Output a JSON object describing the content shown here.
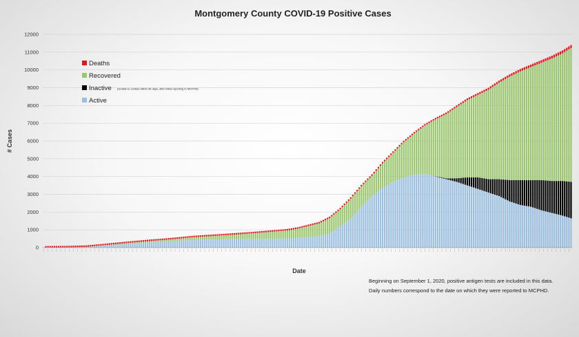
{
  "chart_data": {
    "type": "bar",
    "stacked": true,
    "title": "Montgomery County COVID-19 Positive Cases",
    "xlabel": "Date",
    "ylabel": "# Cases",
    "ylim": [
      0,
      12000
    ],
    "yticks": [
      0,
      1000,
      2000,
      3000,
      4000,
      5000,
      6000,
      7000,
      8000,
      9000,
      10000,
      11000,
      12000
    ],
    "ytick_labels": [
      "0",
      "1000",
      "2000",
      "3000",
      "4000",
      "5000",
      "6000",
      "7000",
      "8000",
      "9000",
      "10000",
      "11000",
      "12000"
    ],
    "grid": true,
    "legend_position": "top-left",
    "bar_count": 250,
    "anchors": {
      "total": [
        [
          0,
          0
        ],
        [
          10,
          10
        ],
        [
          20,
          40
        ],
        [
          30,
          150
        ],
        [
          40,
          270
        ],
        [
          50,
          380
        ],
        [
          60,
          480
        ],
        [
          70,
          600
        ],
        [
          80,
          680
        ],
        [
          90,
          760
        ],
        [
          100,
          850
        ],
        [
          110,
          950
        ],
        [
          115,
          1000
        ],
        [
          120,
          1100
        ],
        [
          130,
          1400
        ],
        [
          135,
          1700
        ],
        [
          140,
          2200
        ],
        [
          145,
          2800
        ],
        [
          150,
          3500
        ],
        [
          155,
          4100
        ],
        [
          160,
          4800
        ],
        [
          165,
          5400
        ],
        [
          170,
          6000
        ],
        [
          175,
          6500
        ],
        [
          180,
          6950
        ],
        [
          185,
          7300
        ],
        [
          190,
          7600
        ],
        [
          195,
          8000
        ],
        [
          200,
          8400
        ],
        [
          205,
          8700
        ],
        [
          210,
          9000
        ],
        [
          215,
          9400
        ],
        [
          220,
          9750
        ],
        [
          225,
          10050
        ],
        [
          230,
          10300
        ],
        [
          235,
          10550
        ],
        [
          240,
          10800
        ],
        [
          245,
          11100
        ],
        [
          249,
          11400
        ]
      ],
      "deaths": [
        [
          0,
          0
        ],
        [
          30,
          2
        ],
        [
          60,
          20
        ],
        [
          100,
          35
        ],
        [
          130,
          40
        ],
        [
          160,
          60
        ],
        [
          190,
          90
        ],
        [
          220,
          130
        ],
        [
          249,
          170
        ]
      ],
      "active": [
        [
          0,
          0
        ],
        [
          10,
          10
        ],
        [
          20,
          35
        ],
        [
          30,
          130
        ],
        [
          40,
          210
        ],
        [
          50,
          290
        ],
        [
          60,
          360
        ],
        [
          70,
          420
        ],
        [
          80,
          460
        ],
        [
          90,
          480
        ],
        [
          100,
          490
        ],
        [
          110,
          500
        ],
        [
          120,
          540
        ],
        [
          130,
          650
        ],
        [
          135,
          800
        ],
        [
          140,
          1200
        ],
        [
          145,
          1600
        ],
        [
          150,
          2300
        ],
        [
          155,
          2900
        ],
        [
          160,
          3350
        ],
        [
          165,
          3700
        ],
        [
          170,
          3950
        ],
        [
          175,
          4100
        ],
        [
          180,
          4150
        ],
        [
          185,
          4000
        ],
        [
          190,
          3850
        ],
        [
          195,
          3700
        ],
        [
          200,
          3500
        ],
        [
          205,
          3300
        ],
        [
          210,
          3100
        ],
        [
          215,
          2900
        ],
        [
          220,
          2600
        ],
        [
          225,
          2400
        ],
        [
          230,
          2300
        ],
        [
          235,
          2100
        ],
        [
          240,
          1950
        ],
        [
          245,
          1800
        ],
        [
          249,
          1650
        ]
      ],
      "inactive": [
        [
          0,
          0
        ],
        [
          183,
          0
        ],
        [
          190,
          50
        ],
        [
          195,
          200
        ],
        [
          200,
          450
        ],
        [
          205,
          650
        ],
        [
          210,
          750
        ],
        [
          215,
          950
        ],
        [
          220,
          1200
        ],
        [
          225,
          1400
        ],
        [
          230,
          1500
        ],
        [
          235,
          1700
        ],
        [
          240,
          1800
        ],
        [
          245,
          1950
        ],
        [
          249,
          2050
        ]
      ]
    },
    "series": [
      {
        "name": "Deaths",
        "color": "#e8141c"
      },
      {
        "name": "Recovered",
        "color": "#9ac66e"
      },
      {
        "name": "Inactive",
        "color": "#000000"
      },
      {
        "name": "Active",
        "color": "#9bbfe0"
      }
    ]
  },
  "legend": [
    {
      "label": "Deaths",
      "color": "#e8141c"
    },
    {
      "label": "Recovered",
      "color": "#9ac66e"
    },
    {
      "label": "Inactive",
      "note": "(Unable to contact within 30 days, after initial reporting to MCPHD)",
      "color": "#000000"
    },
    {
      "label": "Active",
      "color": "#9bbfe0"
    }
  ],
  "notes": [
    "Beginning on September 1, 2020, positive antigen tests are included in this data.",
    "Daily numbers correspond to the date on which they were reported to MCPHD."
  ]
}
